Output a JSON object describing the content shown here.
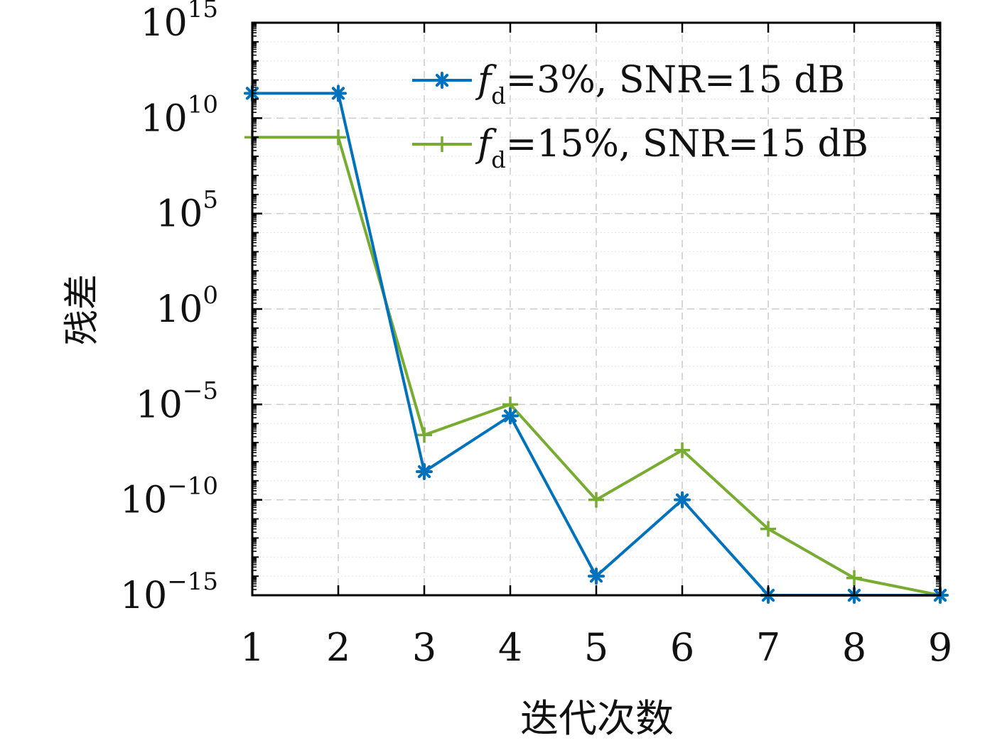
{
  "chart_data": {
    "type": "line",
    "title": "",
    "xlabel": "迭代次数",
    "ylabel": "残差",
    "y_scale": "log",
    "xlim": [
      1,
      9
    ],
    "ylim": [
      1e-15,
      1000000000000000.0
    ],
    "x_ticks": [
      "1",
      "2",
      "3",
      "4",
      "5",
      "6",
      "7",
      "8",
      "9"
    ],
    "y_ticks": [
      {
        "base": "10",
        "exp": "15"
      },
      {
        "base": "10",
        "exp": "10"
      },
      {
        "base": "10",
        "exp": "5"
      },
      {
        "base": "10",
        "exp": "0"
      },
      {
        "base": "10",
        "exp": "−5"
      },
      {
        "base": "10",
        "exp": "−10"
      },
      {
        "base": "10",
        "exp": "−15"
      }
    ],
    "grid": true,
    "legend_position": "top-right",
    "x": [
      1,
      2,
      3,
      4,
      5,
      6,
      7,
      8,
      9
    ],
    "series": [
      {
        "name": "fd=3%, SNR=15 dB",
        "legend": {
          "italic": "f",
          "sub": "d",
          "rest": "=3%, SNR=15 dB"
        },
        "color": "#0072bd",
        "marker": "asterisk",
        "values": [
          200000000000.0,
          200000000000.0,
          3e-09,
          2.5e-06,
          1e-14,
          1e-10,
          1e-15,
          1e-15,
          1e-15
        ]
      },
      {
        "name": "fd=15%, SNR=15 dB",
        "legend": {
          "italic": "f",
          "sub": "d",
          "rest": "=15%, SNR=15 dB"
        },
        "color": "#77ac30",
        "marker": "plus",
        "values": [
          1000000000.0,
          1000000000.0,
          2.5e-07,
          1e-05,
          1e-10,
          4e-08,
          3e-12,
          8e-15,
          1e-15
        ]
      }
    ]
  }
}
